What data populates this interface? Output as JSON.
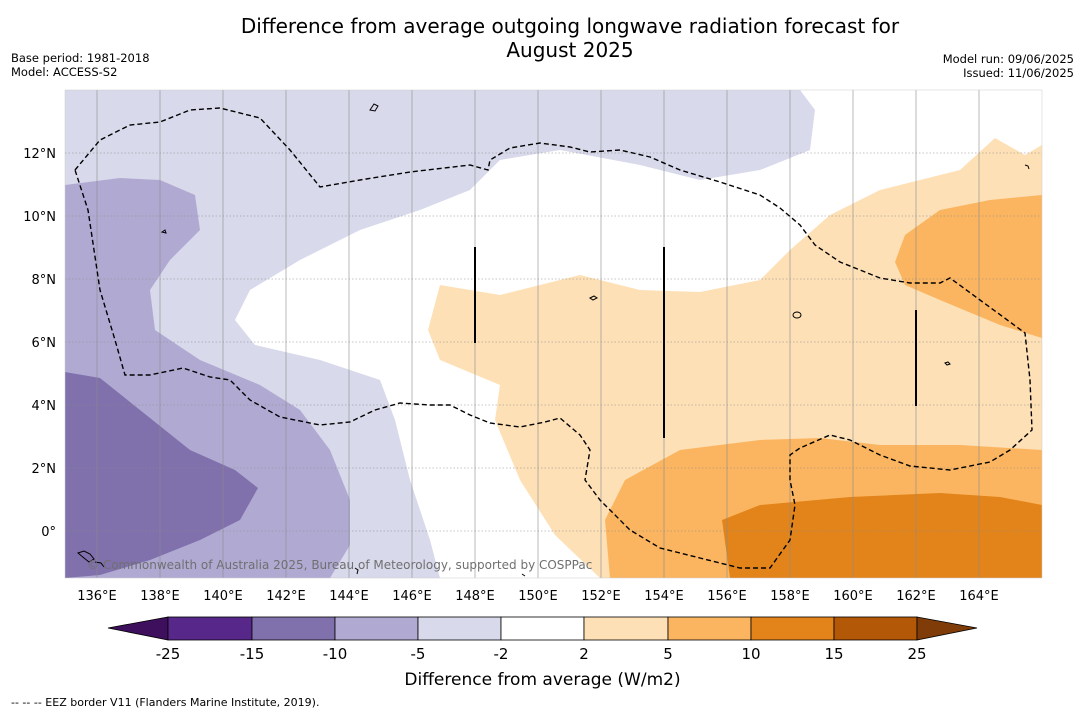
{
  "header": {
    "title_line1": "Difference from average outgoing longwave radiation forecast for",
    "title_line2": "August 2025",
    "base_period": "Base period: 1981-2018",
    "model": "Model: ACCESS-S2",
    "model_run": "Model run: 09/06/2025",
    "issued": "Issued: 11/06/2025"
  },
  "map": {
    "lon_labels": [
      "136°E",
      "138°E",
      "140°E",
      "142°E",
      "144°E",
      "146°E",
      "148°E",
      "150°E",
      "152°E",
      "154°E",
      "156°E",
      "158°E",
      "160°E",
      "162°E",
      "164°E"
    ],
    "lat_labels": [
      "12°N",
      "10°N",
      "8°N",
      "6°N",
      "4°N",
      "2°N",
      "0°"
    ],
    "copyright": "© Commonwealth of Australia 2025, Bureau of Meteorology, supported by COSPPac"
  },
  "colorbar": {
    "ticks": [
      "-25",
      "-15",
      "-10",
      "-5",
      "-2",
      "2",
      "5",
      "10",
      "15",
      "25"
    ],
    "colors": [
      "#3d0f5c",
      "#572889",
      "#8071ac",
      "#b0aad3",
      "#d8d9eb",
      "#ffffff",
      "#fde0b6",
      "#fbb560",
      "#e2841a",
      "#b35806",
      "#7f3b08"
    ],
    "label": "Difference from average (W/m2)"
  },
  "footnote": "-- -- -- EEZ border V11 (Flanders Marine Institute, 2019)."
}
